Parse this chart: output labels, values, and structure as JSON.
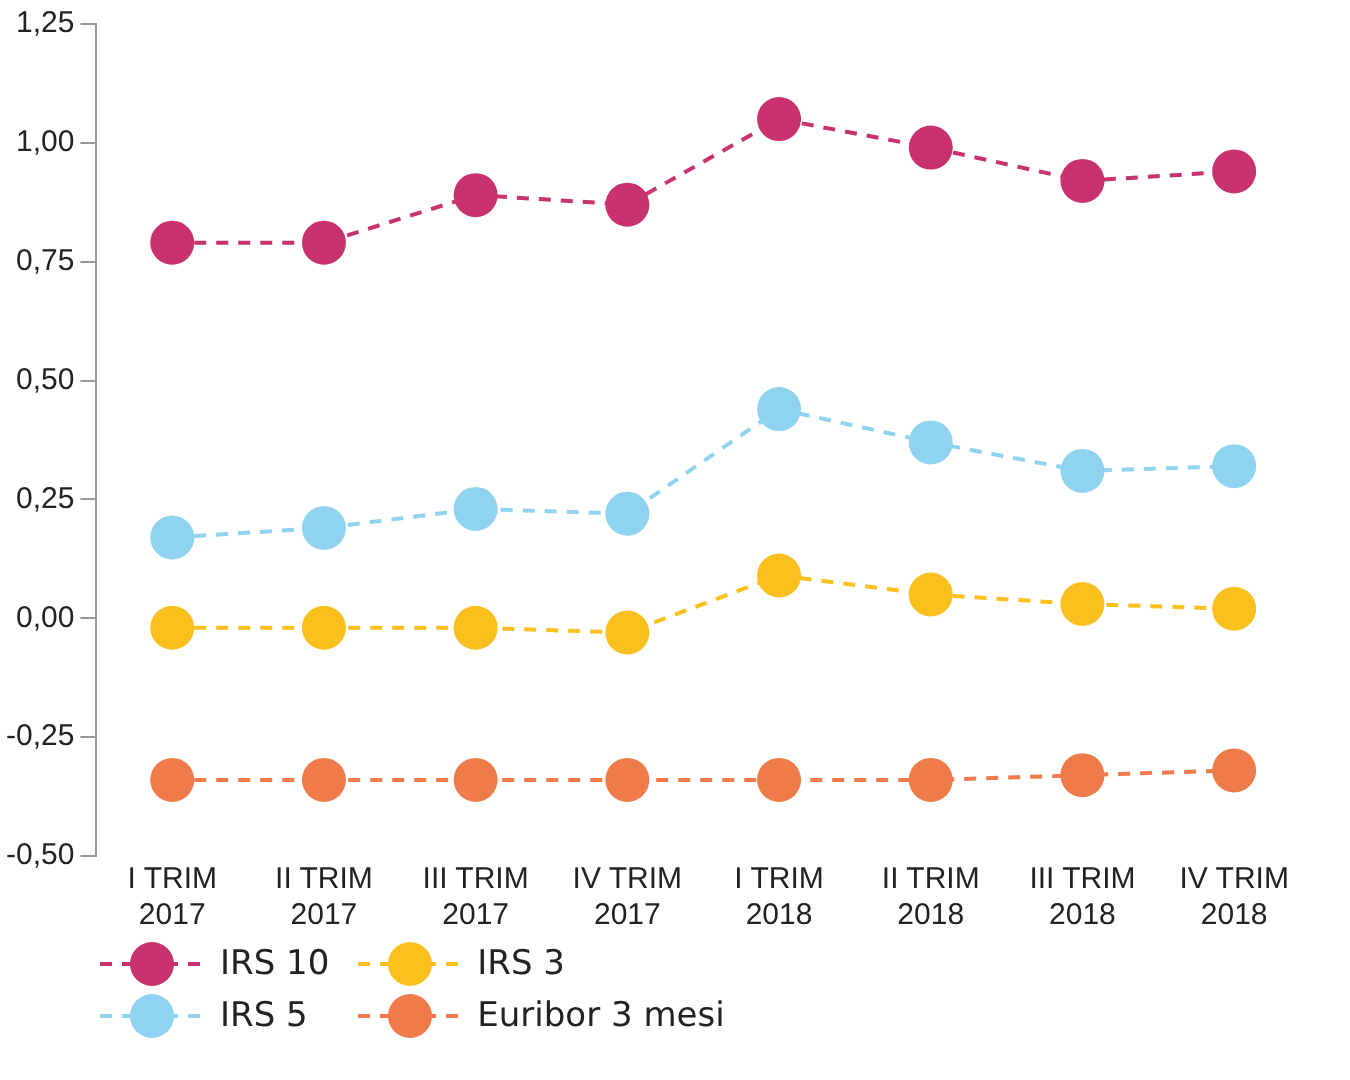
{
  "chart_data": {
    "type": "line",
    "categories": [
      "I TRIM 2017",
      "II TRIM 2017",
      "III TRIM 2017",
      "IV TRIM 2017",
      "I TRIM 2018",
      "II TRIM 2018",
      "III TRIM 2018",
      "IV TRIM 2018"
    ],
    "series": [
      {
        "name": "IRS 10",
        "color": "#c8326e",
        "values": [
          0.79,
          0.79,
          0.89,
          0.87,
          1.05,
          0.99,
          0.92,
          0.94
        ]
      },
      {
        "name": "IRS 5",
        "color": "#8fd3f0",
        "values": [
          0.17,
          0.19,
          0.23,
          0.22,
          0.44,
          0.37,
          0.31,
          0.32
        ]
      },
      {
        "name": "IRS 3",
        "color": "#fbbf1e",
        "values": [
          -0.02,
          -0.02,
          -0.02,
          -0.03,
          0.09,
          0.05,
          0.03,
          0.02
        ]
      },
      {
        "name": "Euribor 3 mesi",
        "color": "#ef7a4a",
        "values": [
          -0.34,
          -0.34,
          -0.34,
          -0.34,
          -0.34,
          -0.34,
          -0.33,
          -0.32
        ]
      }
    ],
    "ylim": [
      -0.5,
      1.25
    ],
    "yticks": [
      {
        "value": -0.5,
        "label": "-0,50"
      },
      {
        "value": -0.25,
        "label": "-0,25"
      },
      {
        "value": 0,
        "label": "0,00"
      },
      {
        "value": 0.25,
        "label": "0,25"
      },
      {
        "value": 0.5,
        "label": "0,50"
      },
      {
        "value": 0.75,
        "label": "0,75"
      },
      {
        "value": 1,
        "label": "1,00"
      },
      {
        "value": 1.25,
        "label": "1,25"
      }
    ],
    "grid": false,
    "legend": "bottom",
    "marker": "circle",
    "line_style": "dashed"
  }
}
